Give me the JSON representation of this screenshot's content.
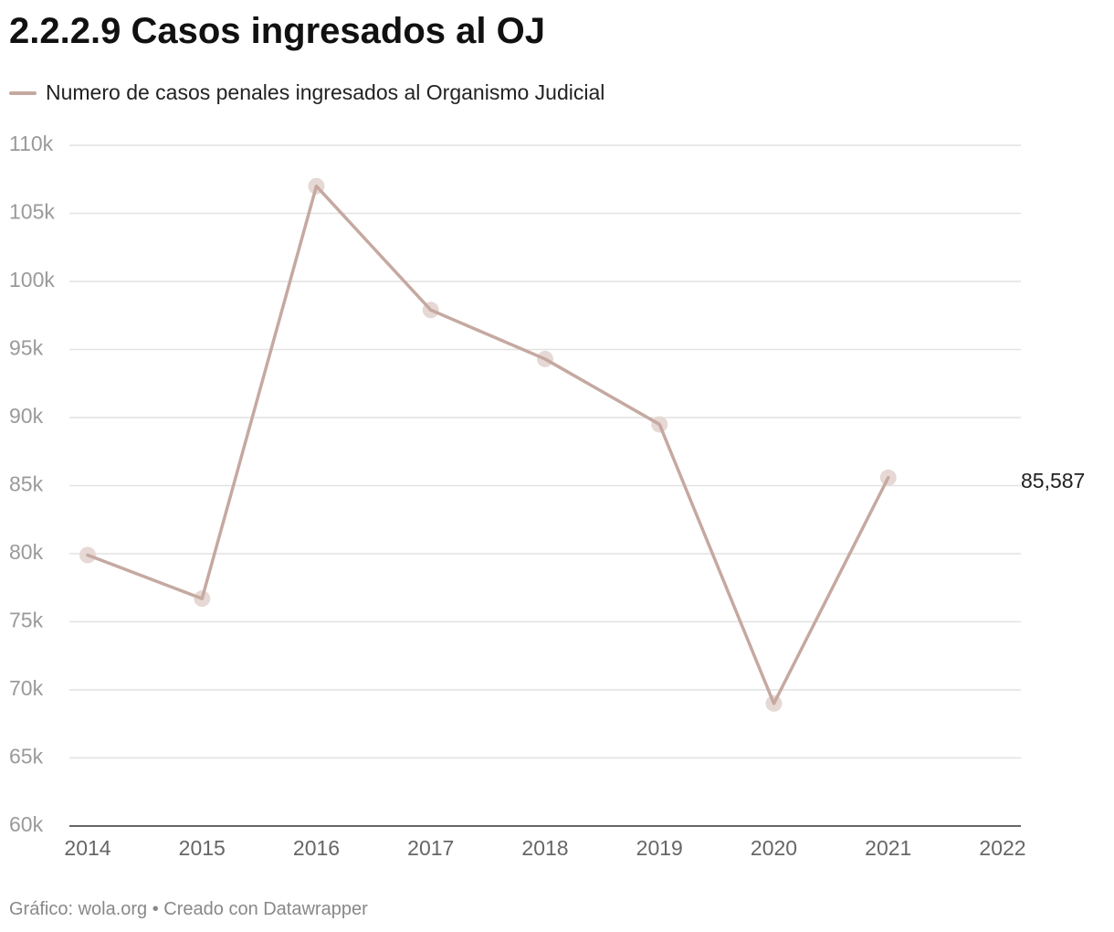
{
  "chart_data": {
    "type": "line",
    "title": "2.2.2.9 Casos ingresados al OJ",
    "x": [
      2014,
      2015,
      2016,
      2017,
      2018,
      2019,
      2020,
      2021
    ],
    "series": [
      {
        "name": "Numero de casos penales ingresados al Organismo Judicial",
        "values": [
          79900,
          76700,
          107000,
          97900,
          94300,
          89500,
          69000,
          85587
        ],
        "color": "#c5a9a1",
        "marker_color": "#e6d8d4"
      }
    ],
    "xlim": [
      2014,
      2022
    ],
    "ylim": [
      60000,
      110000
    ],
    "x_ticks": [
      "2014",
      "2015",
      "2016",
      "2017",
      "2018",
      "2019",
      "2020",
      "2021",
      "2022"
    ],
    "y_ticks": [
      {
        "value": 110000,
        "label": "110k"
      },
      {
        "value": 105000,
        "label": "105k"
      },
      {
        "value": 100000,
        "label": "100k"
      },
      {
        "value": 95000,
        "label": "95k"
      },
      {
        "value": 90000,
        "label": "90k"
      },
      {
        "value": 85000,
        "label": "85k"
      },
      {
        "value": 80000,
        "label": "80k"
      },
      {
        "value": 75000,
        "label": "75k"
      },
      {
        "value": 70000,
        "label": "70k"
      },
      {
        "value": 65000,
        "label": "65k"
      },
      {
        "value": 60000,
        "label": "60k"
      }
    ],
    "end_label": "85,587",
    "grid": true,
    "legend_position": "top-left"
  },
  "footer": "Gráfico: wola.org • Creado con Datawrapper"
}
